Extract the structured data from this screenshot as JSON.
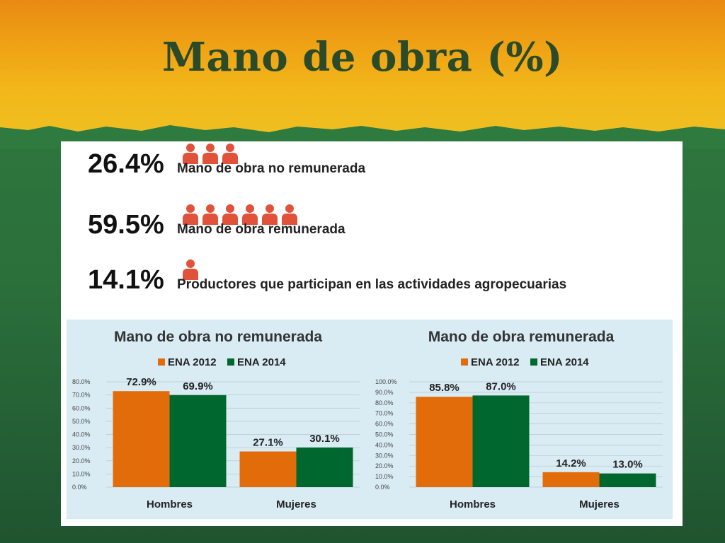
{
  "slide": {
    "title": "Mano de obra (%)"
  },
  "stats": [
    {
      "value": "26.4%",
      "label": "Mano de obra no remunerada",
      "icon_count": 3
    },
    {
      "value": "59.5%",
      "label": "Mano de obra remunerada",
      "icon_count": 6
    },
    {
      "value": "14.1%",
      "label": "Productores que participan en las actividades agropecuarias",
      "icon_count": 1
    }
  ],
  "colors": {
    "ena2012": "#e36c0a",
    "ena2014": "#00682e",
    "person_icon": "#e0523a"
  },
  "chart_data": [
    {
      "type": "bar",
      "title": "Mano de obra no remunerada",
      "categories": [
        "Hombres",
        "Mujeres"
      ],
      "series": [
        {
          "name": "ENA 2012",
          "values": [
            72.9,
            27.1
          ]
        },
        {
          "name": "ENA 2014",
          "values": [
            69.9,
            30.1
          ]
        }
      ],
      "data_labels": [
        [
          "72.9%",
          "27.1%"
        ],
        [
          "69.9%",
          "30.1%"
        ]
      ],
      "ylim": [
        0,
        80
      ],
      "yticks": [
        "0.0%",
        "10.0%",
        "20.0%",
        "30.0%",
        "40.0%",
        "50.0%",
        "60.0%",
        "70.0%",
        "80.0%"
      ],
      "legend_position": "top"
    },
    {
      "type": "bar",
      "title": "Mano de obra remunerada",
      "categories": [
        "Hombres",
        "Mujeres"
      ],
      "series": [
        {
          "name": "ENA 2012",
          "values": [
            85.8,
            14.2
          ]
        },
        {
          "name": "ENA 2014",
          "values": [
            87.0,
            13.0
          ]
        }
      ],
      "data_labels": [
        [
          "85.8%",
          "14.2%"
        ],
        [
          "87.0%",
          "13.0%"
        ]
      ],
      "ylim": [
        0,
        100
      ],
      "yticks": [
        "0.0%",
        "10.0%",
        "20.0%",
        "30.0%",
        "40.0%",
        "50.0%",
        "60.0%",
        "70.0%",
        "80.0%",
        "90.0%",
        "100.0%"
      ],
      "legend_position": "top"
    }
  ]
}
